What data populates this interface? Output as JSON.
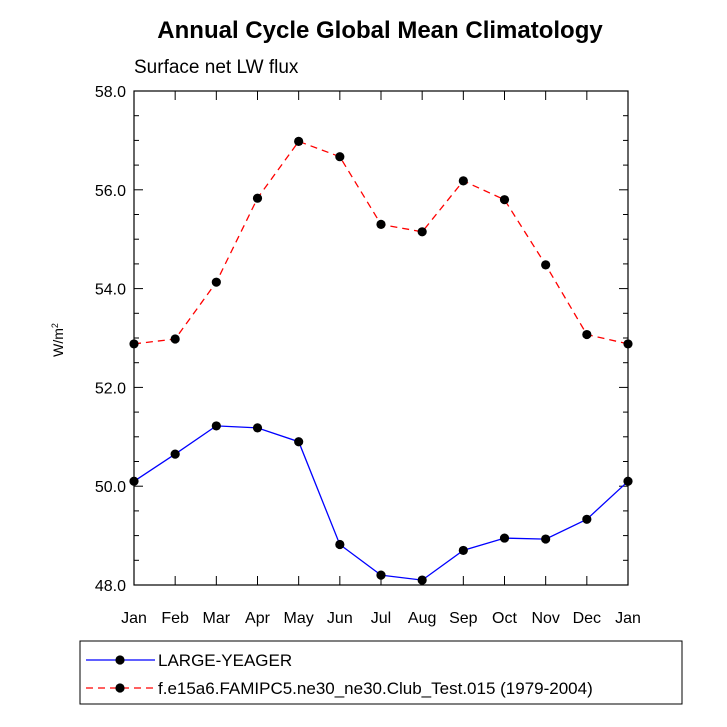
{
  "chart_data": {
    "type": "line",
    "title": "Annual Cycle Global Mean Climatology",
    "subtitle": "Surface net LW flux",
    "ylabel": "W/m",
    "ylabel_sup": "2",
    "xlabel": "",
    "categories": [
      "Jan",
      "Feb",
      "Mar",
      "Apr",
      "May",
      "Jun",
      "Jul",
      "Aug",
      "Sep",
      "Oct",
      "Nov",
      "Dec",
      "Jan"
    ],
    "ylim": [
      48.0,
      58.0
    ],
    "yticks": [
      "48.0",
      "50.0",
      "52.0",
      "54.0",
      "56.0",
      "58.0"
    ],
    "grid": false,
    "legend_position": "bottom",
    "series": [
      {
        "name": "LARGE-YEAGER",
        "color": "#0000ff",
        "line_style": "solid",
        "marker": "filled-circle",
        "values": [
          50.1,
          50.65,
          51.22,
          51.18,
          50.9,
          48.82,
          48.2,
          48.1,
          48.7,
          48.95,
          48.93,
          49.33,
          50.1
        ]
      },
      {
        "name": "f.e15a6.FAMIPC5.ne30_ne30.Club_Test.015 (1979-2004)",
        "color": "#ff0000",
        "line_style": "dashed",
        "marker": "filled-circle",
        "values": [
          52.88,
          52.98,
          54.13,
          55.83,
          56.98,
          56.67,
          55.3,
          55.15,
          56.18,
          55.8,
          54.48,
          53.07,
          52.88
        ]
      }
    ]
  }
}
